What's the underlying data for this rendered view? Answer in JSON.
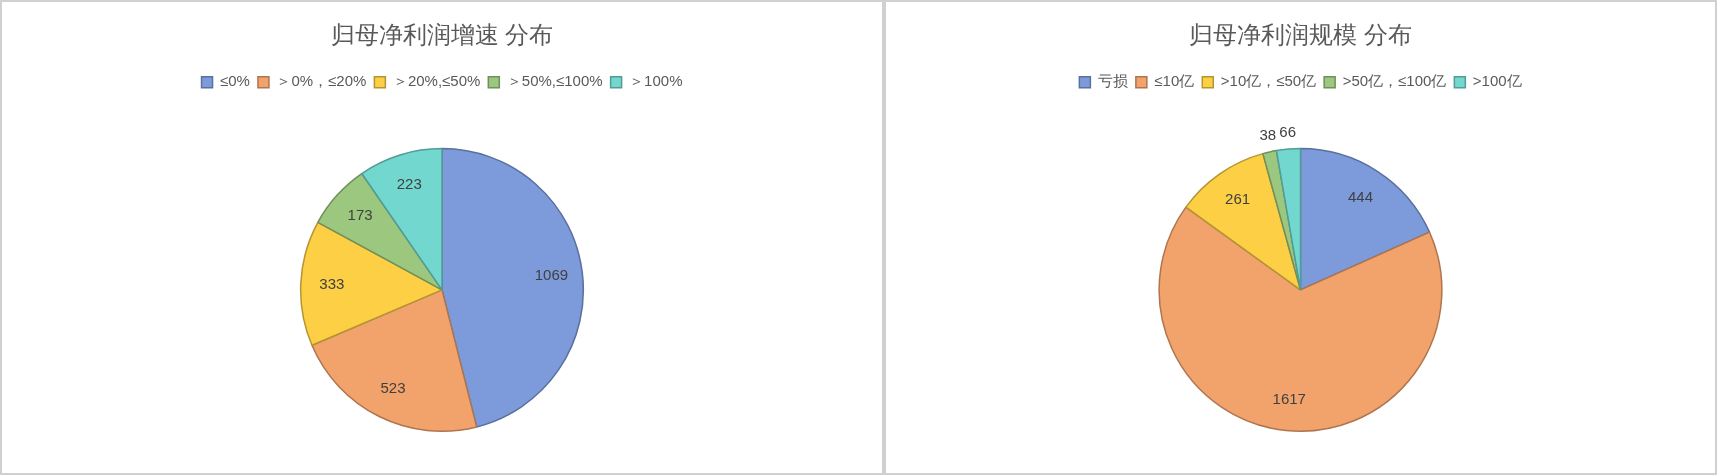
{
  "chart_data": [
    {
      "type": "pie",
      "title": "归母净利润增速 分布",
      "categories": [
        "≤0%",
        "＞0%，≤20%",
        "＞20%,≤50%",
        "＞50%,≤100%",
        "＞100%"
      ],
      "values": [
        1069,
        523,
        333,
        173,
        223
      ],
      "colors": [
        "#7d9bdb",
        "#f2a36c",
        "#fccf45",
        "#9cc77e",
        "#72d8cf"
      ],
      "data_labels": true,
      "legend": "top"
    },
    {
      "type": "pie",
      "title": "归母净利润规模 分布",
      "categories": [
        "亏损",
        "≤10亿",
        ">10亿，≤50亿",
        ">50亿，≤100亿",
        ">100亿"
      ],
      "values": [
        444,
        1617,
        261,
        38,
        66
      ],
      "colors": [
        "#7d9bdb",
        "#f2a36c",
        "#fccf45",
        "#9cc77e",
        "#72d8cf"
      ],
      "data_labels": true,
      "legend": "top"
    }
  ]
}
